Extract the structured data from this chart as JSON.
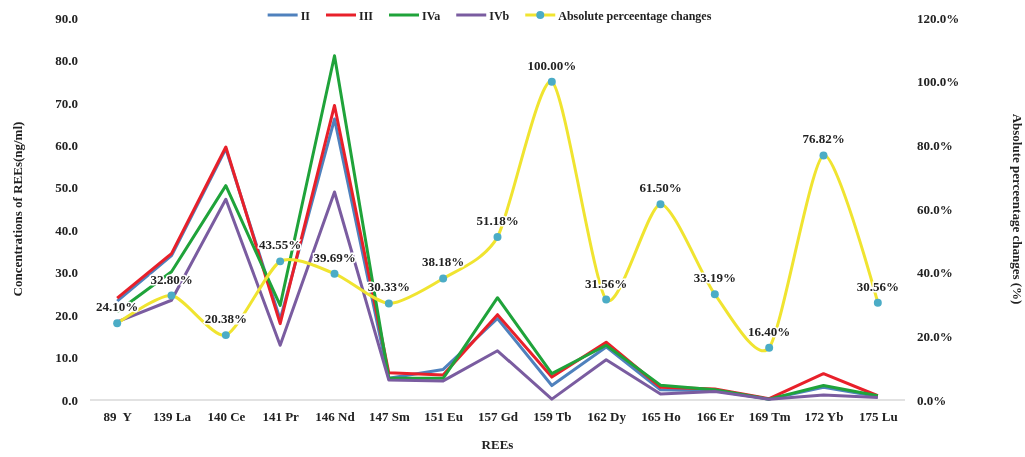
{
  "chart_data": {
    "type": "line",
    "xlabel": "REEs",
    "ylabel": "Concentrations of REEs(ng/ml)",
    "y2label": "Absolute perceentage changes (%)",
    "categories": [
      "89  Y",
      "139 La",
      "140 Ce",
      "141 Pr",
      "146 Nd",
      "147 Sm",
      "151 Eu",
      "157 Gd",
      "159 Tb",
      "162 Dy",
      "165 Ho",
      "166 Er",
      "169 Tm",
      "172 Yb",
      "175 Lu"
    ],
    "series": [
      {
        "name": "II",
        "color": "#4f81bd",
        "values": [
          23.3,
          34,
          59.2,
          19,
          66.2,
          5.1,
          7.2,
          19.2,
          3.4,
          12.5,
          2.4,
          2.2,
          0.2,
          3.0,
          0.8
        ]
      },
      {
        "name": "III",
        "color": "#e8202a",
        "values": [
          24,
          34.5,
          59.6,
          18,
          69.4,
          6.4,
          5.9,
          20.1,
          5.4,
          13.6,
          3.0,
          2.6,
          0.3,
          6.2,
          1.0
        ]
      },
      {
        "name": "IVa",
        "color": "#1fa33a",
        "values": [
          20.8,
          30.2,
          50.5,
          22.3,
          81.1,
          5.1,
          5.1,
          24.1,
          6.2,
          12.9,
          3.5,
          2.4,
          0.2,
          3.4,
          1.0
        ]
      },
      {
        "name": "IVb",
        "color": "#7a5ca0",
        "values": [
          18.4,
          23.5,
          47.3,
          12.9,
          49,
          4.7,
          4.5,
          11.6,
          0.2,
          9.5,
          1.4,
          2.0,
          0.2,
          1.2,
          0.6
        ]
      },
      {
        "name": "Absolute perceentage changes",
        "color": "#f0e430",
        "axis": "y2",
        "marker": "circle",
        "values": [
          24.1,
          32.8,
          20.38,
          43.55,
          39.69,
          30.33,
          38.18,
          51.18,
          100.0,
          31.56,
          61.5,
          33.19,
          16.4,
          76.82,
          30.56
        ],
        "value_labels": [
          "24.10%",
          "32.80%",
          "20.38%",
          "43.55%",
          "39.69%",
          "30.33%",
          "38.18%",
          "51.18%",
          "100.00%",
          "31.56%",
          "61.50%",
          "33.19%",
          "16.40%",
          "76.82%",
          "30.56%"
        ]
      }
    ],
    "ylim": [
      0,
      90
    ],
    "yticks": [
      {
        "value": 0,
        "label": "0.0"
      },
      {
        "value": 10,
        "label": "10.0"
      },
      {
        "value": 20,
        "label": "20.0"
      },
      {
        "value": 30,
        "label": "30.0"
      },
      {
        "value": 40,
        "label": "40.0"
      },
      {
        "value": 50,
        "label": "50.0"
      },
      {
        "value": 60,
        "label": "60.0"
      },
      {
        "value": 70,
        "label": "70.0"
      },
      {
        "value": 80,
        "label": "80.0"
      },
      {
        "value": 90,
        "label": "90.0"
      }
    ],
    "y2lim": [
      0,
      120
    ],
    "y2ticks": [
      {
        "value": 0,
        "label": "0.0%"
      },
      {
        "value": 20,
        "label": "20.0%"
      },
      {
        "value": 40,
        "label": "40.0%"
      },
      {
        "value": 60,
        "label": "60.0%"
      },
      {
        "value": 80,
        "label": "80.0%"
      },
      {
        "value": 100,
        "label": "100.0%"
      },
      {
        "value": 120,
        "label": "120.0%"
      }
    ],
    "legend": "top"
  }
}
